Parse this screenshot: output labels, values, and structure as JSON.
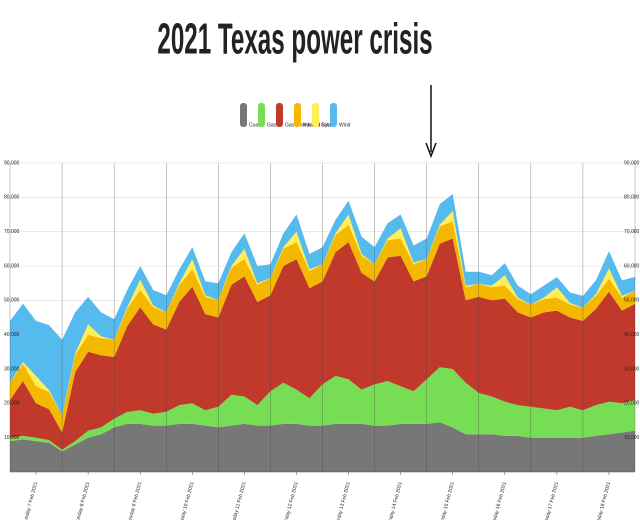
{
  "chart_data": {
    "type": "stacked-area",
    "title": "2021 Texas power crisis",
    "x": [
      0,
      6,
      12,
      18,
      24,
      30,
      36,
      42,
      48,
      54,
      60,
      66,
      72,
      78,
      84,
      90,
      96,
      102,
      108,
      114,
      120,
      126,
      132,
      138,
      144,
      150,
      156,
      162,
      168,
      174,
      180,
      186,
      192,
      198,
      204,
      210,
      216,
      222,
      228,
      234,
      240,
      246,
      252,
      258,
      264,
      270,
      276,
      282,
      288
    ],
    "xlim": [
      0,
      288
    ],
    "xticks": [
      {
        "value": 12,
        "label": "Sunday 7 Feb 2021"
      },
      {
        "value": 36,
        "label": "Monday 8 Feb 2021"
      },
      {
        "value": 60,
        "label": "Tuesday 9 Feb 2021"
      },
      {
        "value": 84,
        "label": "Wednesday 10 Feb 2021"
      },
      {
        "value": 108,
        "label": "Thursday 11 Feb 2021"
      },
      {
        "value": 132,
        "label": "Friday 12 Feb 2021"
      },
      {
        "value": 156,
        "label": "Saturday 13 Feb 2021"
      },
      {
        "value": 180,
        "label": "Sunday 14 Feb 2021"
      },
      {
        "value": 204,
        "label": "Monday 15 Feb 2021"
      },
      {
        "value": 228,
        "label": "Tuesday 16 Feb 2021"
      },
      {
        "value": 252,
        "label": "Wednesday 17 Feb 2021"
      },
      {
        "value": 276,
        "label": "Thursday 18 Feb 2021"
      }
    ],
    "xgrid": [
      0,
      24,
      48,
      72,
      96,
      120,
      144,
      168,
      192,
      216,
      240,
      264,
      288
    ],
    "ylim": [
      0,
      90000
    ],
    "yticks": [
      {
        "value": 10000,
        "label": "10,000"
      },
      {
        "value": 20000,
        "label": "20,000"
      },
      {
        "value": 30000,
        "label": "30,000"
      },
      {
        "value": 40000,
        "label": "40,000"
      },
      {
        "value": 50000,
        "label": "50,000"
      },
      {
        "value": 60000,
        "label": "60,000"
      },
      {
        "value": 70000,
        "label": "70,000"
      },
      {
        "value": 80000,
        "label": "80,000"
      },
      {
        "value": 90000,
        "label": "90,000"
      }
    ],
    "grid": true,
    "series": [
      {
        "name": "Coal",
        "color": "#777777",
        "values": [
          9000,
          9500,
          9000,
          8500,
          6000,
          8000,
          10000,
          11000,
          13000,
          14000,
          14000,
          13500,
          13500,
          14000,
          14000,
          13500,
          13000,
          13500,
          14000,
          13500,
          13500,
          14000,
          14000,
          13500,
          13500,
          14000,
          14000,
          14000,
          13500,
          13500,
          14000,
          14000,
          14000,
          14500,
          13000,
          11000,
          11000,
          11000,
          10500,
          10500,
          10000,
          10000,
          10000,
          10000,
          10000,
          10500,
          11000,
          11500,
          12000
        ]
      },
      {
        "name": "Gas",
        "color": "#77dd55",
        "values": [
          1000,
          1000,
          1000,
          800,
          500,
          1000,
          2000,
          2000,
          2500,
          3500,
          4000,
          3500,
          4000,
          5500,
          6000,
          4500,
          6000,
          9000,
          8000,
          6000,
          10000,
          12000,
          10000,
          8000,
          12000,
          14000,
          13000,
          10000,
          12000,
          13000,
          11000,
          9500,
          13000,
          16000,
          17000,
          15000,
          12000,
          11000,
          10000,
          9000,
          9000,
          8500,
          8000,
          9000,
          8000,
          9000,
          9500,
          8500,
          9000
        ]
      },
      {
        "name": "Gas (Combined Cycle)",
        "color": "#c0392b",
        "values": [
          11000,
          16000,
          10000,
          9000,
          5000,
          20000,
          23000,
          21000,
          18000,
          25000,
          30000,
          26000,
          24000,
          30000,
          34000,
          28000,
          26000,
          32000,
          35000,
          30000,
          28000,
          34000,
          38000,
          32000,
          30000,
          36000,
          40000,
          34000,
          30000,
          36000,
          38000,
          32000,
          30000,
          36000,
          38000,
          24000,
          28000,
          28000,
          30000,
          27000,
          26000,
          28000,
          29000,
          26000,
          26000,
          28000,
          32000,
          27000,
          28000
        ]
      },
      {
        "name": "Nuclear",
        "color": "#f5b800",
        "values": [
          5000,
          5000,
          5000,
          5000,
          5000,
          5000,
          5000,
          5000,
          5000,
          5000,
          5000,
          5000,
          5000,
          5000,
          5000,
          5000,
          5000,
          5000,
          5000,
          5000,
          5000,
          5000,
          5000,
          5000,
          5000,
          5000,
          5000,
          5000,
          5000,
          5000,
          5000,
          5000,
          5000,
          5000,
          5000,
          3800,
          3800,
          3800,
          3800,
          3800,
          3800,
          3800,
          3800,
          3800,
          3800,
          3800,
          3800,
          3800,
          3800
        ]
      },
      {
        "name": "Solar",
        "color": "#ffee55",
        "values": [
          0,
          500,
          3000,
          500,
          0,
          500,
          3000,
          500,
          0,
          500,
          3000,
          500,
          0,
          500,
          3000,
          500,
          0,
          500,
          3000,
          500,
          0,
          500,
          3000,
          500,
          0,
          500,
          3000,
          500,
          0,
          500,
          3000,
          500,
          0,
          500,
          3000,
          500,
          0,
          500,
          3000,
          500,
          0,
          500,
          3000,
          500,
          0,
          500,
          3000,
          500,
          0
        ]
      },
      {
        "name": "Wind",
        "color": "#55bbee",
        "values": [
          18000,
          17000,
          16000,
          19000,
          22000,
          12000,
          8000,
          7000,
          6000,
          5000,
          4000,
          4500,
          5000,
          4000,
          3500,
          4000,
          5000,
          4000,
          4500,
          5000,
          4000,
          4000,
          5000,
          4500,
          5000,
          4000,
          4000,
          5000,
          5000,
          4500,
          4000,
          5000,
          6000,
          6000,
          5000,
          4000,
          3500,
          3000,
          3500,
          3500,
          3000,
          3500,
          3000,
          3000,
          3500,
          4000,
          5000,
          4500,
          4000
        ]
      }
    ]
  }
}
